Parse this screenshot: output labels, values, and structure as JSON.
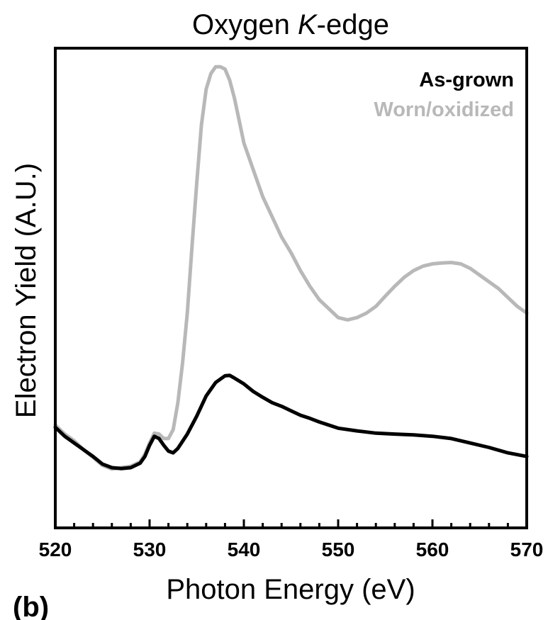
{
  "chart_data": {
    "type": "line",
    "title_parts": [
      "Oxygen ",
      "K",
      "-edge"
    ],
    "xlabel": "Photon Energy (eV)",
    "ylabel": "Electron Yield (A.U.)",
    "panel_label": "(b)",
    "xlim": [
      520,
      570
    ],
    "ylim": [
      0,
      1
    ],
    "xticks": [
      520,
      530,
      540,
      550,
      560,
      570
    ],
    "xtick_labels": [
      "520",
      "530",
      "540",
      "550",
      "560",
      "570"
    ],
    "y_ticks_shown": false,
    "grid": false,
    "legend_position": "top-right",
    "series": [
      {
        "name": "As-grown",
        "color": "#000000",
        "x": [
          520,
          521,
          522,
          523,
          524,
          525,
          526,
          527,
          528,
          529,
          529.5,
          530,
          530.5,
          531,
          531.5,
          532,
          532.5,
          533,
          534,
          535,
          536,
          537,
          538,
          538.5,
          539,
          540,
          541,
          542,
          543,
          544,
          545,
          546,
          547,
          548,
          549,
          550,
          552,
          554,
          556,
          558,
          560,
          562,
          564,
          566,
          568,
          570
        ],
        "y": [
          0.185,
          0.165,
          0.15,
          0.135,
          0.12,
          0.103,
          0.095,
          0.093,
          0.095,
          0.105,
          0.12,
          0.145,
          0.165,
          0.16,
          0.145,
          0.132,
          0.128,
          0.138,
          0.17,
          0.21,
          0.255,
          0.285,
          0.3,
          0.301,
          0.295,
          0.282,
          0.265,
          0.252,
          0.24,
          0.232,
          0.222,
          0.212,
          0.205,
          0.197,
          0.19,
          0.183,
          0.177,
          0.172,
          0.17,
          0.168,
          0.165,
          0.16,
          0.15,
          0.14,
          0.128,
          0.12
        ]
      },
      {
        "name": "Worn/oxidized",
        "color": "#b8b8b8",
        "x": [
          520,
          521,
          522,
          523,
          524,
          525,
          526,
          527,
          528,
          529,
          529.5,
          530,
          530.5,
          531,
          531.5,
          532,
          532.5,
          533,
          533.5,
          534,
          534.5,
          535,
          535.5,
          536,
          536.5,
          537,
          537.5,
          538,
          538.5,
          539,
          539.5,
          540,
          541,
          542,
          543,
          544,
          545,
          546,
          547,
          548,
          549,
          550,
          551,
          552,
          553,
          554,
          555,
          556,
          557,
          558,
          559,
          560,
          561,
          562,
          563,
          564,
          565,
          566,
          567,
          568,
          569,
          570
        ],
        "y": [
          0.19,
          0.17,
          0.155,
          0.135,
          0.118,
          0.1,
          0.092,
          0.095,
          0.098,
          0.108,
          0.125,
          0.15,
          0.172,
          0.17,
          0.16,
          0.16,
          0.18,
          0.24,
          0.33,
          0.44,
          0.59,
          0.73,
          0.86,
          0.94,
          0.975,
          0.99,
          0.99,
          0.985,
          0.96,
          0.92,
          0.87,
          0.82,
          0.76,
          0.7,
          0.655,
          0.61,
          0.575,
          0.535,
          0.5,
          0.47,
          0.45,
          0.43,
          0.425,
          0.43,
          0.44,
          0.455,
          0.478,
          0.5,
          0.52,
          0.535,
          0.545,
          0.55,
          0.552,
          0.553,
          0.55,
          0.54,
          0.525,
          0.51,
          0.495,
          0.475,
          0.455,
          0.44
        ]
      }
    ]
  }
}
